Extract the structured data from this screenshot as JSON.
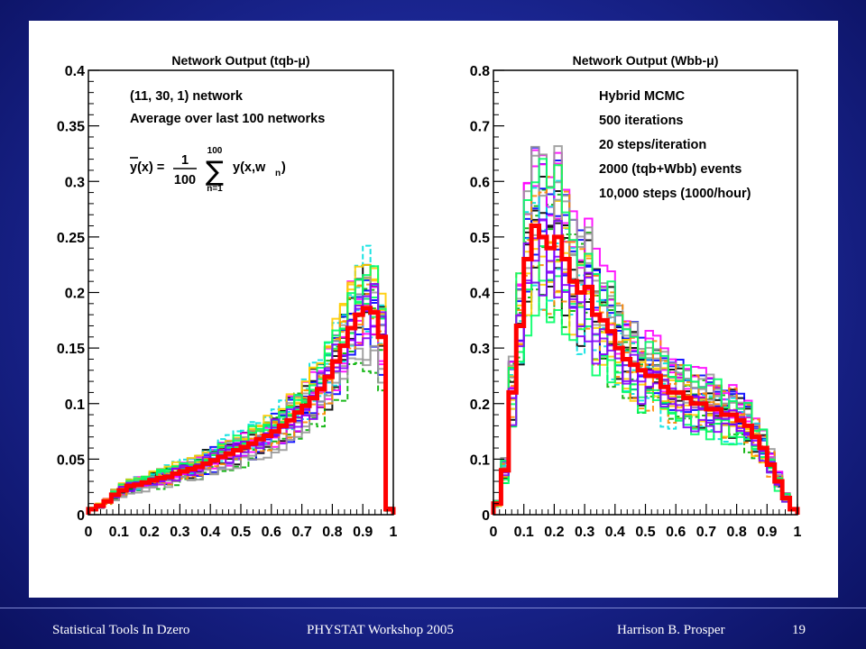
{
  "chart_data": [
    {
      "type": "step-histogram",
      "title": "Network Output (tqb-μ)",
      "xlim": [
        0,
        1
      ],
      "ylim": [
        0,
        0.4
      ],
      "x_ticks": [
        "0",
        "0.1",
        "0.2",
        "0.3",
        "0.4",
        "0.5",
        "0.6",
        "0.7",
        "0.8",
        "0.9",
        "1"
      ],
      "y_ticks": [
        "0",
        "0.05",
        "0.1",
        "0.15",
        "0.2",
        "0.25",
        "0.3",
        "0.35",
        "0.4"
      ],
      "annotations": [
        "(11, 30, 1) network",
        "Average over last 100 networks"
      ],
      "formula": {
        "lhs": "y(x) =",
        "num": "1",
        "den": "100",
        "sum_top": "100",
        "sum_bot": "n=1",
        "rhs": "y(x,w",
        "sub": "n",
        "close": ")"
      },
      "average_series": {
        "bin_width": 0.025,
        "values": [
          0.005,
          0.008,
          0.012,
          0.018,
          0.022,
          0.026,
          0.027,
          0.029,
          0.031,
          0.033,
          0.034,
          0.037,
          0.039,
          0.041,
          0.043,
          0.046,
          0.049,
          0.052,
          0.055,
          0.058,
          0.061,
          0.064,
          0.068,
          0.071,
          0.075,
          0.08,
          0.085,
          0.092,
          0.098,
          0.105,
          0.113,
          0.124,
          0.138,
          0.152,
          0.168,
          0.18,
          0.186,
          0.182,
          0.16,
          0.005
        ]
      },
      "ensemble_colors": [
        "#000000",
        "#00b000",
        "#0000ff",
        "#ff00ff",
        "#00e0e0",
        "#ffcc00",
        "#999999",
        "#ff8800",
        "#00ff66",
        "#8800ff"
      ]
    },
    {
      "type": "step-histogram",
      "title": "Network Output (Wbb-μ)",
      "xlim": [
        0,
        1
      ],
      "ylim": [
        0,
        0.8
      ],
      "x_ticks": [
        "0",
        "0.1",
        "0.2",
        "0.3",
        "0.4",
        "0.5",
        "0.6",
        "0.7",
        "0.8",
        "0.9",
        "1"
      ],
      "y_ticks": [
        "0",
        "0.1",
        "0.2",
        "0.3",
        "0.4",
        "0.5",
        "0.6",
        "0.7",
        "0.8"
      ],
      "annotations": [
        "Hybrid MCMC",
        "500 iterations",
        "20 steps/iteration",
        "2000 (tqb+Wbb) events",
        "10,000 steps (1000/hour)"
      ],
      "average_series": {
        "bin_width": 0.025,
        "values": [
          0.02,
          0.08,
          0.22,
          0.34,
          0.46,
          0.52,
          0.5,
          0.48,
          0.5,
          0.46,
          0.42,
          0.4,
          0.41,
          0.36,
          0.35,
          0.33,
          0.3,
          0.28,
          0.27,
          0.26,
          0.25,
          0.25,
          0.23,
          0.22,
          0.22,
          0.21,
          0.2,
          0.2,
          0.19,
          0.19,
          0.18,
          0.18,
          0.17,
          0.16,
          0.14,
          0.12,
          0.09,
          0.06,
          0.03,
          0.01
        ]
      },
      "ensemble_colors": [
        "#000000",
        "#00b000",
        "#0000ff",
        "#ff00ff",
        "#00e0e0",
        "#ffcc00",
        "#999999",
        "#ff8800",
        "#00ff66",
        "#8800ff"
      ]
    }
  ],
  "footer": {
    "left": "Statistical Tools In Dzero",
    "center": "PHYSTAT Workshop 2005",
    "author": "Harrison B. Prosper",
    "page": "19"
  }
}
